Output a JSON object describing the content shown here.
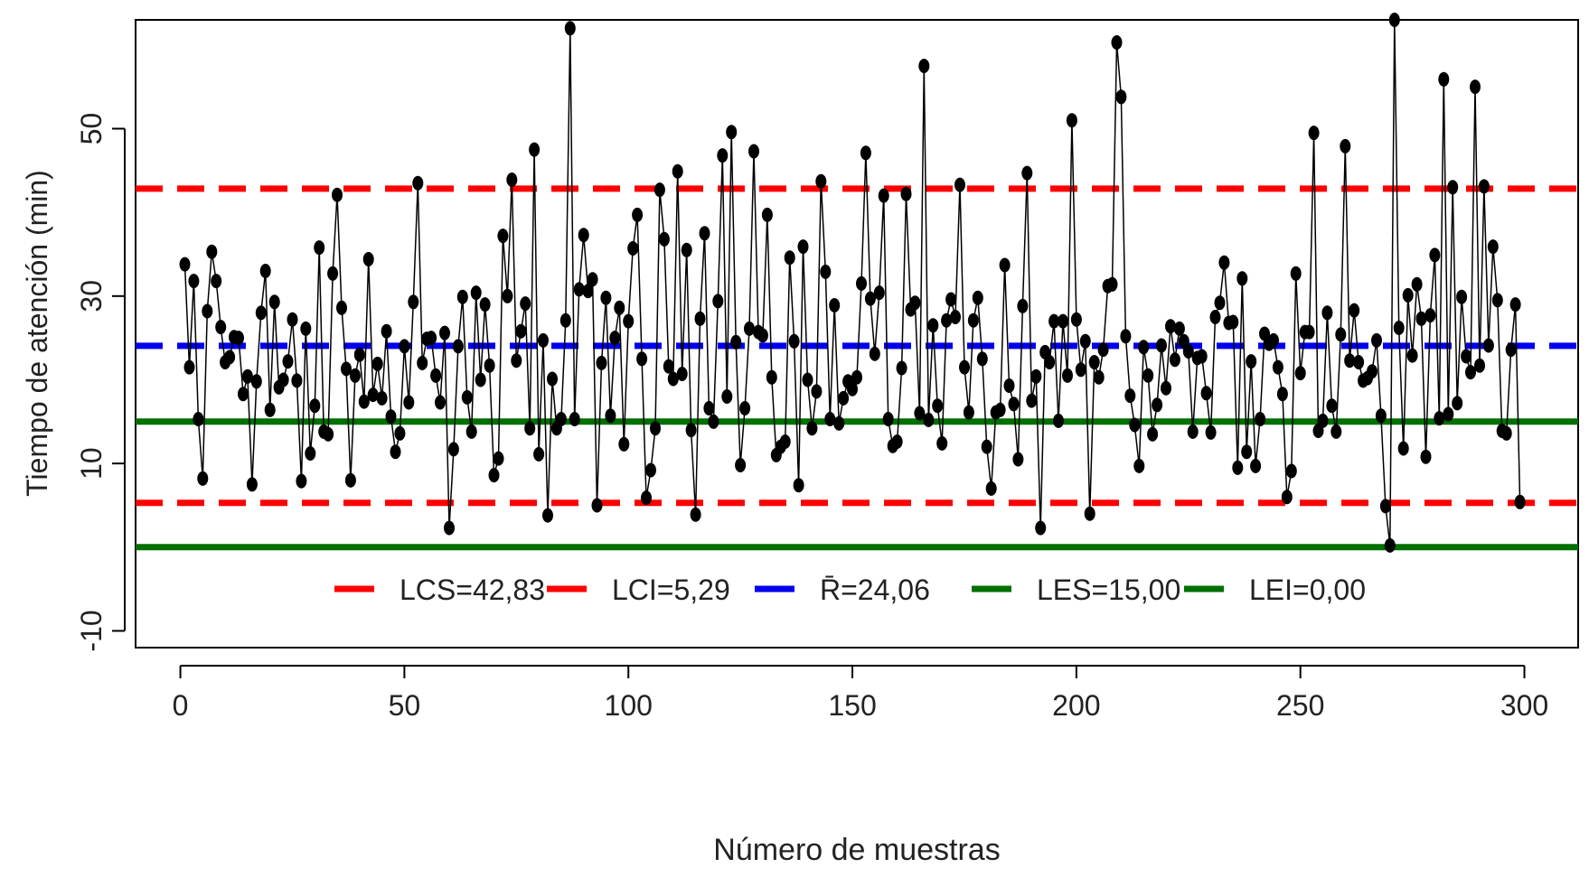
{
  "chart_data": {
    "type": "line",
    "title": "",
    "xlabel": "Número de muestras",
    "ylabel": "Tiempo de atención (min)",
    "xlim": [
      -10,
      312
    ],
    "ylim": [
      -12,
      63
    ],
    "x_ticks": [
      0,
      50,
      100,
      150,
      200,
      250,
      300
    ],
    "y_ticks": [
      -10,
      10,
      30,
      50
    ],
    "grid": false,
    "legend_position": "bottom-center",
    "colors": {
      "series": "#000000",
      "lcs": "#ff0000",
      "lci": "#ff0000",
      "rbar": "#0000ee",
      "les": "#007000",
      "lei": "#007000"
    },
    "reference_lines": [
      {
        "key": "lcs",
        "label": "LCS=42,83",
        "value": 42.83,
        "style": "dashed"
      },
      {
        "key": "lci",
        "label": "LCI=5,29",
        "value": 5.29,
        "style": "dashed"
      },
      {
        "key": "rbar",
        "label": "R̄=24,06",
        "value": 24.06,
        "style": "dashed"
      },
      {
        "key": "les",
        "label": "LES=15,00",
        "value": 15.0,
        "style": "solid"
      },
      {
        "key": "lei",
        "label": "LEI=0,00",
        "value": 0.0,
        "style": "solid"
      }
    ],
    "series": [
      {
        "x_start": 1,
        "values": [
          33.8,
          21.5,
          31.8,
          15.3,
          8.2,
          28.2,
          35.3,
          31.8,
          26.3,
          22.1,
          22.7,
          25.1,
          25.0,
          18.3,
          20.4,
          7.5,
          19.8,
          28.0,
          33.0,
          16.4,
          29.3,
          19.1,
          20.0,
          22.2,
          27.2,
          19.9,
          7.9,
          26.1,
          11.2,
          16.9,
          35.8,
          13.8,
          13.5,
          32.7,
          42.1,
          28.6,
          21.3,
          8.0,
          20.5,
          23.0,
          17.4,
          34.4,
          18.2,
          21.9,
          17.8,
          25.8,
          15.6,
          11.4,
          13.6,
          24.0,
          17.3,
          29.3,
          43.5,
          22.0,
          24.9,
          25.0,
          20.5,
          17.3,
          25.6,
          2.3,
          11.7,
          24.0,
          29.9,
          17.9,
          13.8,
          30.4,
          20.0,
          29.0,
          21.7,
          8.6,
          10.6,
          37.2,
          30.0,
          43.9,
          22.3,
          25.8,
          29.1,
          14.2,
          47.5,
          11.1,
          24.7,
          3.8,
          20.1,
          14.2,
          15.3,
          27.1,
          62.0,
          15.3,
          30.8,
          37.3,
          30.6,
          32.0,
          5.0,
          22.0,
          29.8,
          15.7,
          25.0,
          28.6,
          12.3,
          27.0,
          35.7,
          39.7,
          22.5,
          5.9,
          9.2,
          14.2,
          42.7,
          36.8,
          21.6,
          20.1,
          44.9,
          20.7,
          35.5,
          14.0,
          3.9,
          27.3,
          37.5,
          16.6,
          15.0,
          29.4,
          46.8,
          18.0,
          49.6,
          24.5,
          9.8,
          16.6,
          26.1,
          47.3,
          25.7,
          25.3,
          39.7,
          20.3,
          11.0,
          12.0,
          12.6,
          34.6,
          24.6,
          7.4,
          35.9,
          20.0,
          14.2,
          18.6,
          43.7,
          32.9,
          15.3,
          28.9,
          14.8,
          17.8,
          19.8,
          18.9,
          20.3,
          31.5,
          47.1,
          29.7,
          23.1,
          30.4,
          42.0,
          15.3,
          12.1,
          12.6,
          21.4,
          42.2,
          28.4,
          29.2,
          16.0,
          57.5,
          15.2,
          26.5,
          16.9,
          12.4,
          27.1,
          29.6,
          27.5,
          43.3,
          21.5,
          16.1,
          27.1,
          29.8,
          22.5,
          12.0,
          7.0,
          16.1,
          16.4,
          33.7,
          19.3,
          17.1,
          10.5,
          28.8,
          44.7,
          17.5,
          20.4,
          2.3,
          23.3,
          22.1,
          27.0,
          15.1,
          27.0,
          20.5,
          51.0,
          27.2,
          21.2,
          24.6,
          4.0,
          22.1,
          20.3,
          23.6,
          31.2,
          31.4,
          60.3,
          53.8,
          25.2,
          18.1,
          14.6,
          9.7,
          23.9,
          20.5,
          13.5,
          17.0,
          24.1,
          19.0,
          26.4,
          22.4,
          26.1,
          24.6,
          23.4,
          13.8,
          22.6,
          22.8,
          18.4,
          13.7,
          27.5,
          29.2,
          34.0,
          26.8,
          26.9,
          9.5,
          32.1,
          11.4,
          22.2,
          9.7,
          15.3,
          25.5,
          24.3,
          24.7,
          21.5,
          18.3,
          6.0,
          9.1,
          32.7,
          20.8,
          25.7,
          25.7,
          49.5,
          13.9,
          15.1,
          28.0,
          16.9,
          13.8,
          25.4,
          47.9,
          22.3,
          28.3,
          22.1,
          19.9,
          20.2,
          21.0,
          24.7,
          15.7,
          4.9,
          0.2,
          63.0,
          26.2,
          11.8,
          30.1,
          22.9,
          31.4,
          27.3,
          10.8,
          27.7,
          34.9,
          15.4,
          55.9,
          15.9,
          43.0,
          17.2,
          29.9,
          22.8,
          20.9,
          55.0,
          21.7,
          43.1,
          24.1,
          35.9,
          29.5,
          13.9,
          13.6,
          23.6,
          29.0,
          5.4
        ]
      }
    ]
  }
}
